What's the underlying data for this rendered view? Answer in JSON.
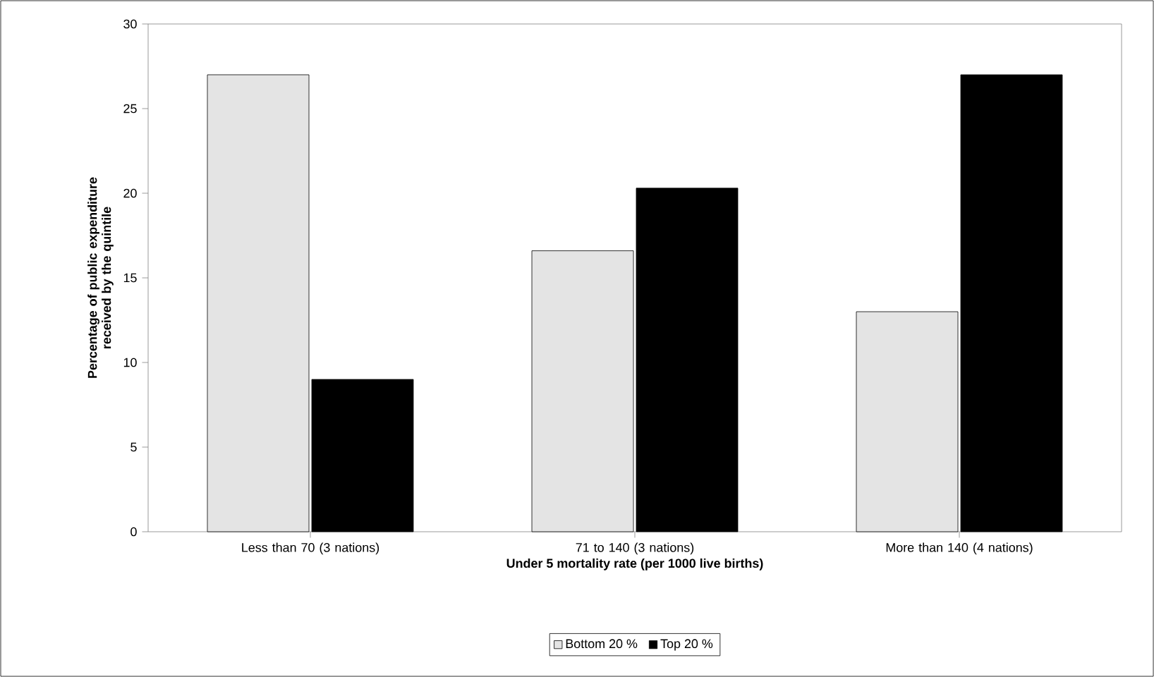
{
  "chart_data": {
    "type": "bar",
    "categories": [
      "Less than 70 (3 nations)",
      "71 to 140 (3 nations)",
      "More than 140 (4 nations)"
    ],
    "series": [
      {
        "name": "Bottom 20 %",
        "color": "#e4e4e4",
        "values": [
          27,
          16.6,
          13
        ]
      },
      {
        "name": "Top 20 %",
        "color": "#000000",
        "values": [
          9,
          20.3,
          27
        ]
      }
    ],
    "xlabel": "Under 5 mortality rate (per 1000 live births)",
    "ylabel": "Percentage of public expenditure received by the quintile",
    "ylim": [
      0,
      30
    ],
    "yticks": [
      0,
      5,
      10,
      15,
      20,
      25,
      30
    ],
    "legend": "bottom"
  }
}
